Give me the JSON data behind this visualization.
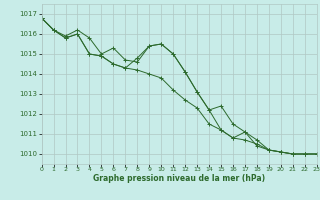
{
  "xlabel": "Graphe pression niveau de la mer (hPa)",
  "ylim": [
    1009.5,
    1017.5
  ],
  "xlim": [
    0,
    23
  ],
  "yticks": [
    1010,
    1011,
    1012,
    1013,
    1014,
    1015,
    1016,
    1017
  ],
  "xticks": [
    0,
    1,
    2,
    3,
    4,
    5,
    6,
    7,
    8,
    9,
    10,
    11,
    12,
    13,
    14,
    15,
    16,
    17,
    18,
    19,
    20,
    21,
    22,
    23
  ],
  "bg_color": "#c8ece8",
  "grid_color": "#b0c8c4",
  "line_color": "#2d6a2d",
  "series": [
    [
      1016.8,
      1016.2,
      1015.9,
      1016.2,
      1015.8,
      1015.0,
      1015.3,
      1014.7,
      1014.6,
      1015.4,
      1015.5,
      1015.0,
      1014.1,
      1013.1,
      1012.2,
      1012.4,
      1011.5,
      1011.1,
      1010.4,
      1010.2,
      1010.1,
      1010.0,
      1010.0,
      1010.0
    ],
    [
      1016.8,
      1016.2,
      1015.8,
      1016.0,
      1015.0,
      1014.9,
      1014.5,
      1014.3,
      1014.8,
      1015.4,
      1015.5,
      1015.0,
      1014.1,
      1013.1,
      1012.2,
      1011.2,
      1010.8,
      1011.1,
      1010.7,
      1010.2,
      1010.1,
      1010.0,
      1010.0,
      1010.0
    ],
    [
      1016.8,
      1016.2,
      1015.8,
      1016.0,
      1015.0,
      1014.9,
      1014.5,
      1014.3,
      1014.2,
      1014.0,
      1013.8,
      1013.2,
      1012.7,
      1012.3,
      1011.5,
      1011.2,
      1010.8,
      1010.7,
      1010.5,
      1010.2,
      1010.1,
      1010.0,
      1010.0,
      1010.0
    ]
  ]
}
